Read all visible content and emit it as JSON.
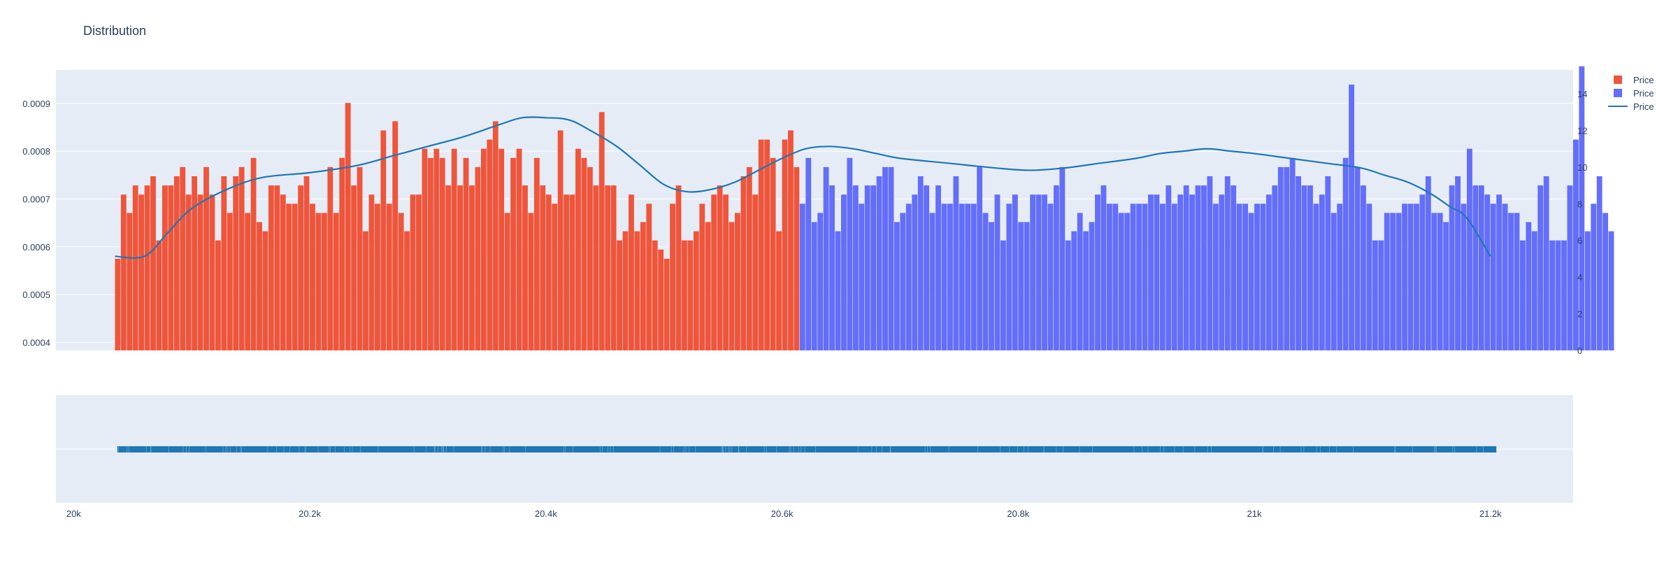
{
  "title": "Distribution",
  "colors": {
    "series_left": "#EF553B",
    "series_right": "#636EFA",
    "kde_line": "#1F77B4",
    "rug": "#1F77B4",
    "plot_bg": "#E5ECF6",
    "grid": "#FFFFFF",
    "tick_text": "#2A3F5F",
    "title_text": "#2A3F5F"
  },
  "legend": {
    "placement": "top-right",
    "items": [
      {
        "label": "Price",
        "symbol": "square",
        "color": "#EF553B"
      },
      {
        "label": "Price",
        "symbol": "square",
        "color": "#636EFA"
      },
      {
        "label": "Price",
        "symbol": "line",
        "color": "#1F77B4"
      }
    ]
  },
  "chart_data": {
    "type": "histogram",
    "title": "Distribution",
    "x_axis": {
      "range": [
        19985,
        21270
      ],
      "ticks": [
        20000,
        20200,
        20400,
        20600,
        20800,
        21000,
        21200
      ],
      "tick_labels": [
        "20k",
        "20.2k",
        "20.4k",
        "20.6k",
        "20.8k",
        "21k",
        "21.2k"
      ]
    },
    "y_left_axis": {
      "range": [
        0.000383,
        0.00097
      ],
      "ticks": [
        0.0004,
        0.0005,
        0.0006,
        0.0007,
        0.0008,
        0.0009
      ],
      "tick_labels": [
        "0.0004",
        "0.0005",
        "0.0006",
        "0.0007",
        "0.0008",
        "0.0009"
      ]
    },
    "y_right_axis": {
      "range": [
        0,
        15.3
      ],
      "ticks": [
        0,
        2,
        4,
        6,
        8,
        10,
        12,
        14
      ],
      "tick_labels": [
        "0",
        "2",
        "4",
        "6",
        "8",
        "10",
        "12",
        "14"
      ]
    },
    "histogram": {
      "bin_start": 20035,
      "bin_width": 5,
      "split_x": 20615,
      "counts": [
        5,
        8.5,
        7.5,
        9,
        8.5,
        9,
        9.5,
        6,
        9,
        9,
        9.5,
        10,
        8.5,
        9.5,
        8.5,
        10,
        8.5,
        6,
        9.5,
        7.5,
        9.5,
        10,
        7.5,
        10.5,
        7,
        6.5,
        9,
        9,
        8.5,
        8,
        8,
        9,
        9.5,
        8,
        7.5,
        7.5,
        10,
        7.5,
        10.5,
        13.5,
        9,
        10,
        6.5,
        8.5,
        8,
        12,
        8,
        12.5,
        7.5,
        6.5,
        8.5,
        8.5,
        11,
        10.5,
        11,
        10.5,
        9,
        11,
        9,
        10.5,
        9,
        10,
        11,
        11.5,
        12.5,
        11,
        7.5,
        10.5,
        11,
        9,
        7.5,
        10.5,
        9,
        8.5,
        8,
        12,
        8.5,
        8.5,
        11,
        10.5,
        10,
        9,
        13,
        9,
        9,
        6,
        6.5,
        8.5,
        6.5,
        7,
        8,
        6,
        5.5,
        5,
        8,
        9,
        6,
        6,
        6.5,
        8,
        7,
        8.5,
        9,
        8.5,
        7,
        7.5,
        9.5,
        10,
        8.5,
        11.5,
        11.5,
        10.5,
        6.5,
        11.5,
        12,
        10,
        8,
        10.5,
        7,
        7.5,
        10,
        9,
        6.5,
        8.5,
        10.5,
        9,
        8,
        9,
        9,
        9.5,
        10,
        10,
        7,
        7.5,
        8,
        8.5,
        9.5,
        9,
        7.5,
        9,
        8,
        8,
        9.5,
        8,
        8,
        8,
        10,
        7.5,
        7,
        8.5,
        6,
        8,
        8.5,
        7,
        7,
        8.5,
        8.5,
        8.5,
        8,
        9,
        10,
        6,
        6.5,
        7.5,
        6.5,
        7,
        8.5,
        9,
        8,
        8,
        7.5,
        7.5,
        8,
        8,
        8,
        8.5,
        8.5,
        8,
        9,
        8,
        8.5,
        9,
        8.5,
        9,
        9,
        9.5,
        8,
        8.5,
        9.5,
        9,
        8,
        8,
        7.5,
        8,
        8,
        8.5,
        9,
        10,
        10,
        10.5,
        9.5,
        9,
        9,
        8,
        8.5,
        9.5,
        7.5,
        8,
        10.5,
        14.5,
        10,
        9,
        8,
        6,
        6,
        7.5,
        7.5,
        7.5,
        8,
        8,
        8,
        8.5,
        9.5,
        7.5,
        7.5,
        7,
        9,
        9.5,
        8,
        11,
        9,
        9,
        8.5,
        8,
        8.5,
        8,
        7.5,
        7.5,
        6,
        7,
        6.5,
        9,
        9.5,
        6,
        6,
        6,
        9,
        11.5,
        15.5,
        6.5,
        8,
        9.5,
        7.5,
        6.5
      ]
    },
    "kde_line": {
      "name": "Price",
      "x": [
        20035,
        20060,
        20080,
        20100,
        20130,
        20160,
        20200,
        20240,
        20270,
        20300,
        20330,
        20360,
        20380,
        20400,
        20420,
        20440,
        20460,
        20480,
        20500,
        20520,
        20540,
        20560,
        20580,
        20600,
        20620,
        20640,
        20660,
        20680,
        20700,
        20740,
        20780,
        20810,
        20840,
        20870,
        20900,
        20920,
        20940,
        20960,
        20980,
        21000,
        21030,
        21060,
        21090,
        21110,
        21130,
        21150,
        21165,
        21180,
        21200
      ],
      "y": [
        0.00058,
        0.00058,
        0.00063,
        0.00068,
        0.00072,
        0.000745,
        0.000755,
        0.00077,
        0.00079,
        0.00081,
        0.00083,
        0.000855,
        0.00087,
        0.00087,
        0.000865,
        0.00084,
        0.00081,
        0.00077,
        0.00073,
        0.000715,
        0.00072,
        0.000735,
        0.00076,
        0.000785,
        0.000805,
        0.00081,
        0.000805,
        0.000795,
        0.000785,
        0.000775,
        0.000765,
        0.00076,
        0.000765,
        0.000775,
        0.000785,
        0.000795,
        0.0008,
        0.000805,
        0.0008,
        0.000795,
        0.000785,
        0.000775,
        0.000765,
        0.00075,
        0.000735,
        0.00071,
        0.000685,
        0.00066,
        0.00058
      ]
    },
    "rug": {
      "x_range": [
        20037,
        21205
      ]
    }
  }
}
